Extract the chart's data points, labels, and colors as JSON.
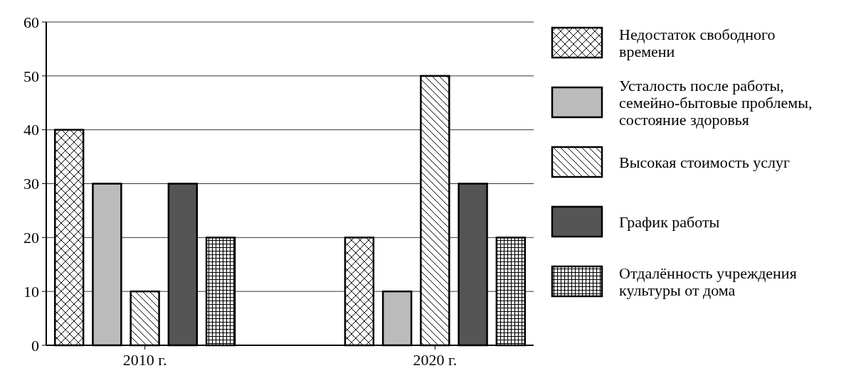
{
  "chart_data": {
    "type": "bar",
    "categories": [
      "2010 г.",
      "2020 г."
    ],
    "series": [
      {
        "name": "Недостаток свободного времени",
        "color": "#000000",
        "values": [
          40,
          20
        ]
      },
      {
        "name": "Усталость после работы, семейно-бытовые проблемы, состояние здоровья",
        "color": "#bbbbbb",
        "values": [
          30,
          10
        ]
      },
      {
        "name": "Высокая стоимость услуг",
        "color": "#000000",
        "values": [
          10,
          50
        ]
      },
      {
        "name": "График работы",
        "color": "#555555",
        "values": [
          30,
          30
        ]
      },
      {
        "name": "Отдалённость учреждения культуры от дома",
        "color": "#000000",
        "values": [
          20,
          20
        ]
      }
    ],
    "ylim": [
      0,
      60
    ],
    "yticks": [
      0,
      10,
      20,
      30,
      40,
      50,
      60
    ],
    "grid": "y",
    "legend": "right"
  }
}
